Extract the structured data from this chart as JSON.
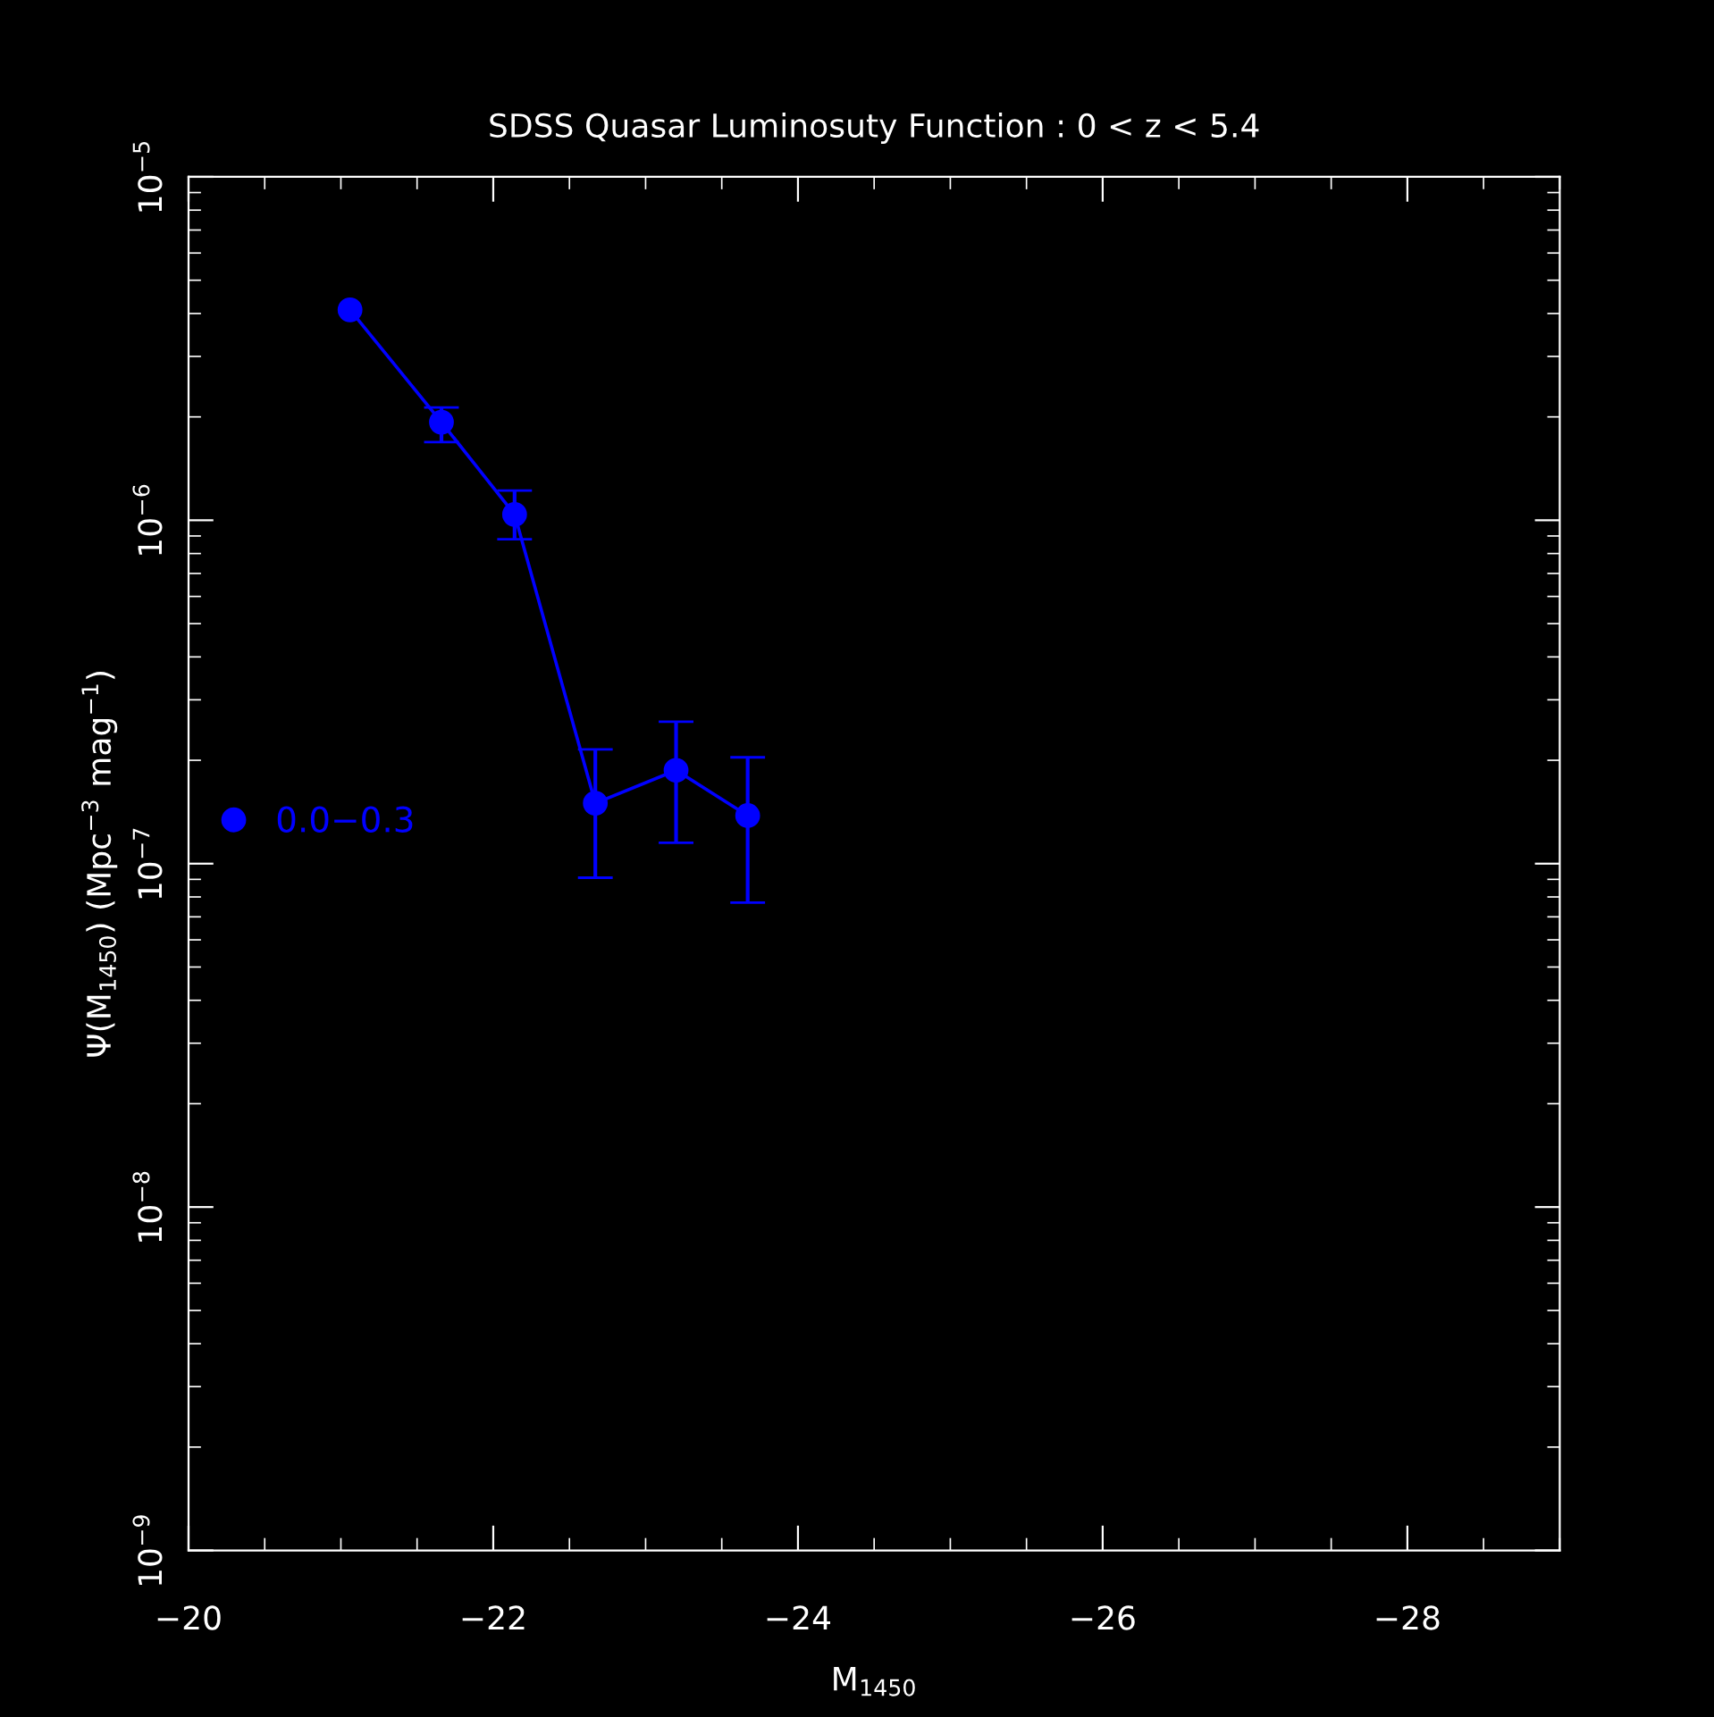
{
  "chart_data": {
    "type": "line",
    "title": "SDSS Quasar Luminosuty Function : 0 < z < 5.4",
    "xlabel": "M$_{1450}$",
    "ylabel": "Ψ(M$_{1450}$) (Mpc$^{−3}$ mag$^{−1}$)",
    "x": [
      -21.06,
      -21.66,
      -22.14,
      -22.67,
      -23.2,
      -23.67
    ],
    "series": [
      {
        "name": "0.0−0.3",
        "color": "#0000ff",
        "values": [
          4.1e-06,
          1.93e-06,
          1.04e-06,
          1.5e-07,
          1.87e-07,
          1.38e-07
        ],
        "errors": [
          null,
          [
            1.69e-06,
            2.13e-06
          ],
          [
            8.8e-07,
            1.22e-06
          ],
          [
            9.1e-08,
            2.15e-07
          ],
          [
            1.15e-07,
            2.59e-07
          ],
          [
            7.7e-08,
            2.04e-07
          ]
        ]
      }
    ],
    "log": "y",
    "xlim": [
      -20,
      -29
    ],
    "ylim": [
      1e-09,
      1e-05
    ],
    "xticks": [
      -20,
      -22,
      -24,
      -26,
      -28
    ],
    "yticks": [
      {
        "value": 1e-09,
        "label": "10$^{−9}$"
      },
      {
        "value": 1e-08,
        "label": "10$^{−8}$"
      },
      {
        "value": 1e-07,
        "label": "10$^{−7}$"
      },
      {
        "value": 1e-06,
        "label": "10$^{−6}$"
      },
      {
        "value": 1e-05,
        "label": "10$^{−5}$"
      }
    ],
    "marker": "circle",
    "line_style": "solid",
    "legend": "left",
    "grid": false
  }
}
